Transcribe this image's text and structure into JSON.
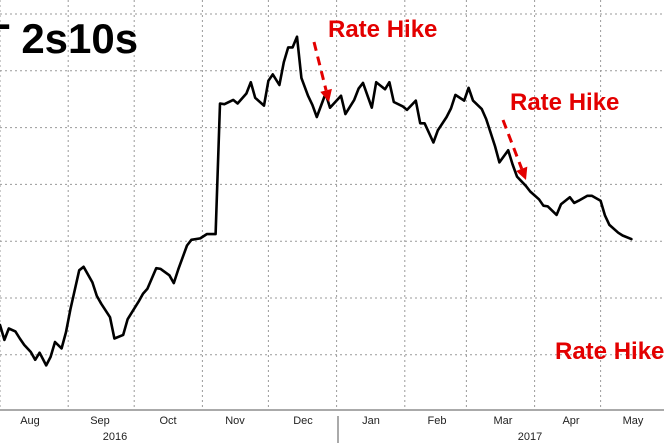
{
  "chart_data": {
    "type": "line",
    "title": "T 2s10s",
    "x_tick_labels": [
      "Aug",
      "Sep",
      "Oct",
      "Nov",
      "Dec",
      "Jan",
      "Feb",
      "Mar",
      "Apr",
      "May"
    ],
    "year_labels": [
      "2016",
      "2017"
    ],
    "annotations": [
      {
        "text": "Rate Hike",
        "date": "2016-12-14"
      },
      {
        "text": "Rate Hike",
        "date": "2017-03-15"
      },
      {
        "text": "Rate Hike",
        "date": "2017-06-14"
      }
    ],
    "grid": true,
    "legend": "none",
    "series": [
      {
        "color": "#000000",
        "points": [
          [
            "2016-07-19",
            87.5
          ],
          [
            "2016-07-21",
            84.7
          ],
          [
            "2016-07-25",
            84.1
          ],
          [
            "2016-07-27",
            85.8
          ],
          [
            "2016-07-29",
            85.5
          ],
          [
            "2016-08-01",
            86.2
          ],
          [
            "2016-08-03",
            84.1
          ],
          [
            "2016-08-05",
            85.7
          ],
          [
            "2016-08-08",
            85.3
          ],
          [
            "2016-08-10",
            84.3
          ],
          [
            "2016-08-12",
            83.4
          ],
          [
            "2016-08-15",
            82.4
          ],
          [
            "2016-08-17",
            81.3
          ],
          [
            "2016-08-19",
            82.3
          ],
          [
            "2016-08-22",
            80.5
          ],
          [
            "2016-08-24",
            81.7
          ],
          [
            "2016-08-26",
            83.8
          ],
          [
            "2016-08-29",
            82.9
          ],
          [
            "2016-08-31",
            85.2
          ],
          [
            "2016-09-02",
            88.4
          ],
          [
            "2016-09-06",
            93.9
          ],
          [
            "2016-09-08",
            94.4
          ],
          [
            "2016-09-12",
            92.2
          ],
          [
            "2016-09-14",
            90.3
          ],
          [
            "2016-09-16",
            89.2
          ],
          [
            "2016-09-20",
            87.3
          ],
          [
            "2016-09-22",
            84.3
          ],
          [
            "2016-09-26",
            84.8
          ],
          [
            "2016-09-28",
            87.0
          ],
          [
            "2016-09-30",
            88.0
          ],
          [
            "2016-10-03",
            89.5
          ],
          [
            "2016-10-05",
            90.6
          ],
          [
            "2016-10-07",
            91.3
          ],
          [
            "2016-10-11",
            94.2
          ],
          [
            "2016-10-13",
            94.1
          ],
          [
            "2016-10-17",
            93.2
          ],
          [
            "2016-10-19",
            92.1
          ],
          [
            "2016-10-21",
            94.0
          ],
          [
            "2016-10-25",
            97.4
          ],
          [
            "2016-10-27",
            98.2
          ],
          [
            "2016-10-31",
            98.4
          ],
          [
            "2016-11-03",
            99.0
          ],
          [
            "2016-11-07",
            99.0
          ],
          [
            "2016-11-09",
            117.4
          ],
          [
            "2016-11-11",
            117.3
          ],
          [
            "2016-11-15",
            117.9
          ],
          [
            "2016-11-17",
            117.4
          ],
          [
            "2016-11-21",
            118.8
          ],
          [
            "2016-11-23",
            120.4
          ],
          [
            "2016-11-25",
            118.2
          ],
          [
            "2016-11-29",
            117.1
          ],
          [
            "2016-12-01",
            120.6
          ],
          [
            "2016-12-03",
            121.5
          ],
          [
            "2016-12-06",
            120.0
          ],
          [
            "2016-12-08",
            123.2
          ],
          [
            "2016-12-10",
            125.3
          ],
          [
            "2016-12-12",
            125.3
          ],
          [
            "2016-12-14",
            126.8
          ],
          [
            "2016-12-16",
            121.0
          ],
          [
            "2016-12-19",
            118.5
          ],
          [
            "2016-12-21",
            117.2
          ],
          [
            "2016-12-23",
            115.5
          ],
          [
            "2016-12-27",
            118.8
          ],
          [
            "2016-12-29",
            116.8
          ],
          [
            "2017-01-03",
            118.5
          ],
          [
            "2017-01-05",
            115.9
          ],
          [
            "2017-01-09",
            117.9
          ],
          [
            "2017-01-11",
            119.5
          ],
          [
            "2017-01-13",
            120.3
          ],
          [
            "2017-01-17",
            116.8
          ],
          [
            "2017-01-19",
            120.4
          ],
          [
            "2017-01-23",
            119.4
          ],
          [
            "2017-01-25",
            120.4
          ],
          [
            "2017-01-27",
            117.6
          ],
          [
            "2017-01-31",
            117.0
          ],
          [
            "2017-02-02",
            116.5
          ],
          [
            "2017-02-06",
            117.8
          ],
          [
            "2017-02-08",
            114.6
          ],
          [
            "2017-02-10",
            114.6
          ],
          [
            "2017-02-14",
            111.9
          ],
          [
            "2017-02-16",
            113.6
          ],
          [
            "2017-02-20",
            115.5
          ],
          [
            "2017-02-22",
            116.7
          ],
          [
            "2017-02-24",
            118.6
          ],
          [
            "2017-02-28",
            117.8
          ],
          [
            "2017-03-02",
            119.6
          ],
          [
            "2017-03-04",
            117.8
          ],
          [
            "2017-03-08",
            116.6
          ],
          [
            "2017-03-10",
            115.2
          ],
          [
            "2017-03-14",
            111.4
          ],
          [
            "2017-03-16",
            109.1
          ],
          [
            "2017-03-20",
            110.8
          ],
          [
            "2017-03-22",
            108.8
          ],
          [
            "2017-03-24",
            107.1
          ],
          [
            "2017-03-28",
            105.8
          ],
          [
            "2017-03-30",
            105.0
          ],
          [
            "2017-04-03",
            103.9
          ],
          [
            "2017-04-05",
            103.0
          ],
          [
            "2017-04-07",
            102.9
          ],
          [
            "2017-04-11",
            101.7
          ],
          [
            "2017-04-13",
            103.2
          ],
          [
            "2017-04-17",
            104.2
          ],
          [
            "2017-04-19",
            103.4
          ],
          [
            "2017-04-21",
            103.7
          ],
          [
            "2017-04-25",
            104.4
          ],
          [
            "2017-04-27",
            104.4
          ],
          [
            "2017-05-01",
            103.7
          ],
          [
            "2017-05-03",
            101.6
          ],
          [
            "2017-05-05",
            100.3
          ],
          [
            "2017-05-09",
            99.2
          ],
          [
            "2017-05-11",
            98.8
          ],
          [
            "2017-05-15",
            98.3
          ]
        ]
      }
    ]
  }
}
